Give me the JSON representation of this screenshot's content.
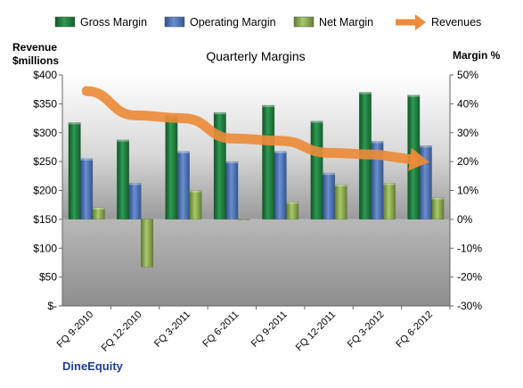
{
  "chart_data": {
    "type": "bar",
    "title": "Quarterly Margins",
    "company": "DineEquity",
    "y_left_label": [
      "Revenue",
      "$millions"
    ],
    "y_right_label": "Margin %",
    "categories": [
      "FQ 9-2010",
      "FQ 12-2010",
      "FQ 3-2011",
      "FQ 6-2011",
      "FQ 9-2011",
      "FQ 12-2011",
      "FQ 3-2012",
      "FQ 6-2012"
    ],
    "left_axis": {
      "min": 0,
      "max": 400,
      "step": 50,
      "tick_labels": [
        "$-",
        "$50",
        "$100",
        "$150",
        "$200",
        "$250",
        "$300",
        "$350",
        "$400"
      ]
    },
    "right_axis": {
      "min": -30,
      "max": 50,
      "step": 10,
      "tick_labels": [
        "-30%",
        "-20%",
        "-10%",
        "0%",
        "10%",
        "20%",
        "30%",
        "40%",
        "50%"
      ]
    },
    "series": [
      {
        "name": "Gross Margin",
        "kind": "bar",
        "axis": "right",
        "color": "#1f7a3c",
        "values": [
          33.5,
          27.5,
          36,
          37,
          39.5,
          34,
          44,
          43
        ]
      },
      {
        "name": "Operating Margin",
        "kind": "bar",
        "axis": "right",
        "color": "#4a6fb3",
        "values": [
          21,
          12.5,
          23.5,
          20,
          23.5,
          16,
          27,
          25.5
        ]
      },
      {
        "name": "Net Margin",
        "kind": "bar",
        "axis": "right",
        "color": "#8db04f",
        "values": [
          4,
          -16.5,
          10,
          0,
          6,
          12,
          12.5,
          7.5
        ]
      },
      {
        "name": "Revenues",
        "kind": "line",
        "axis": "left",
        "color": "#ec8b3a",
        "values": [
          372,
          330,
          325,
          290,
          286,
          265,
          262,
          250
        ]
      }
    ],
    "grid": false,
    "legend_position": "top"
  }
}
